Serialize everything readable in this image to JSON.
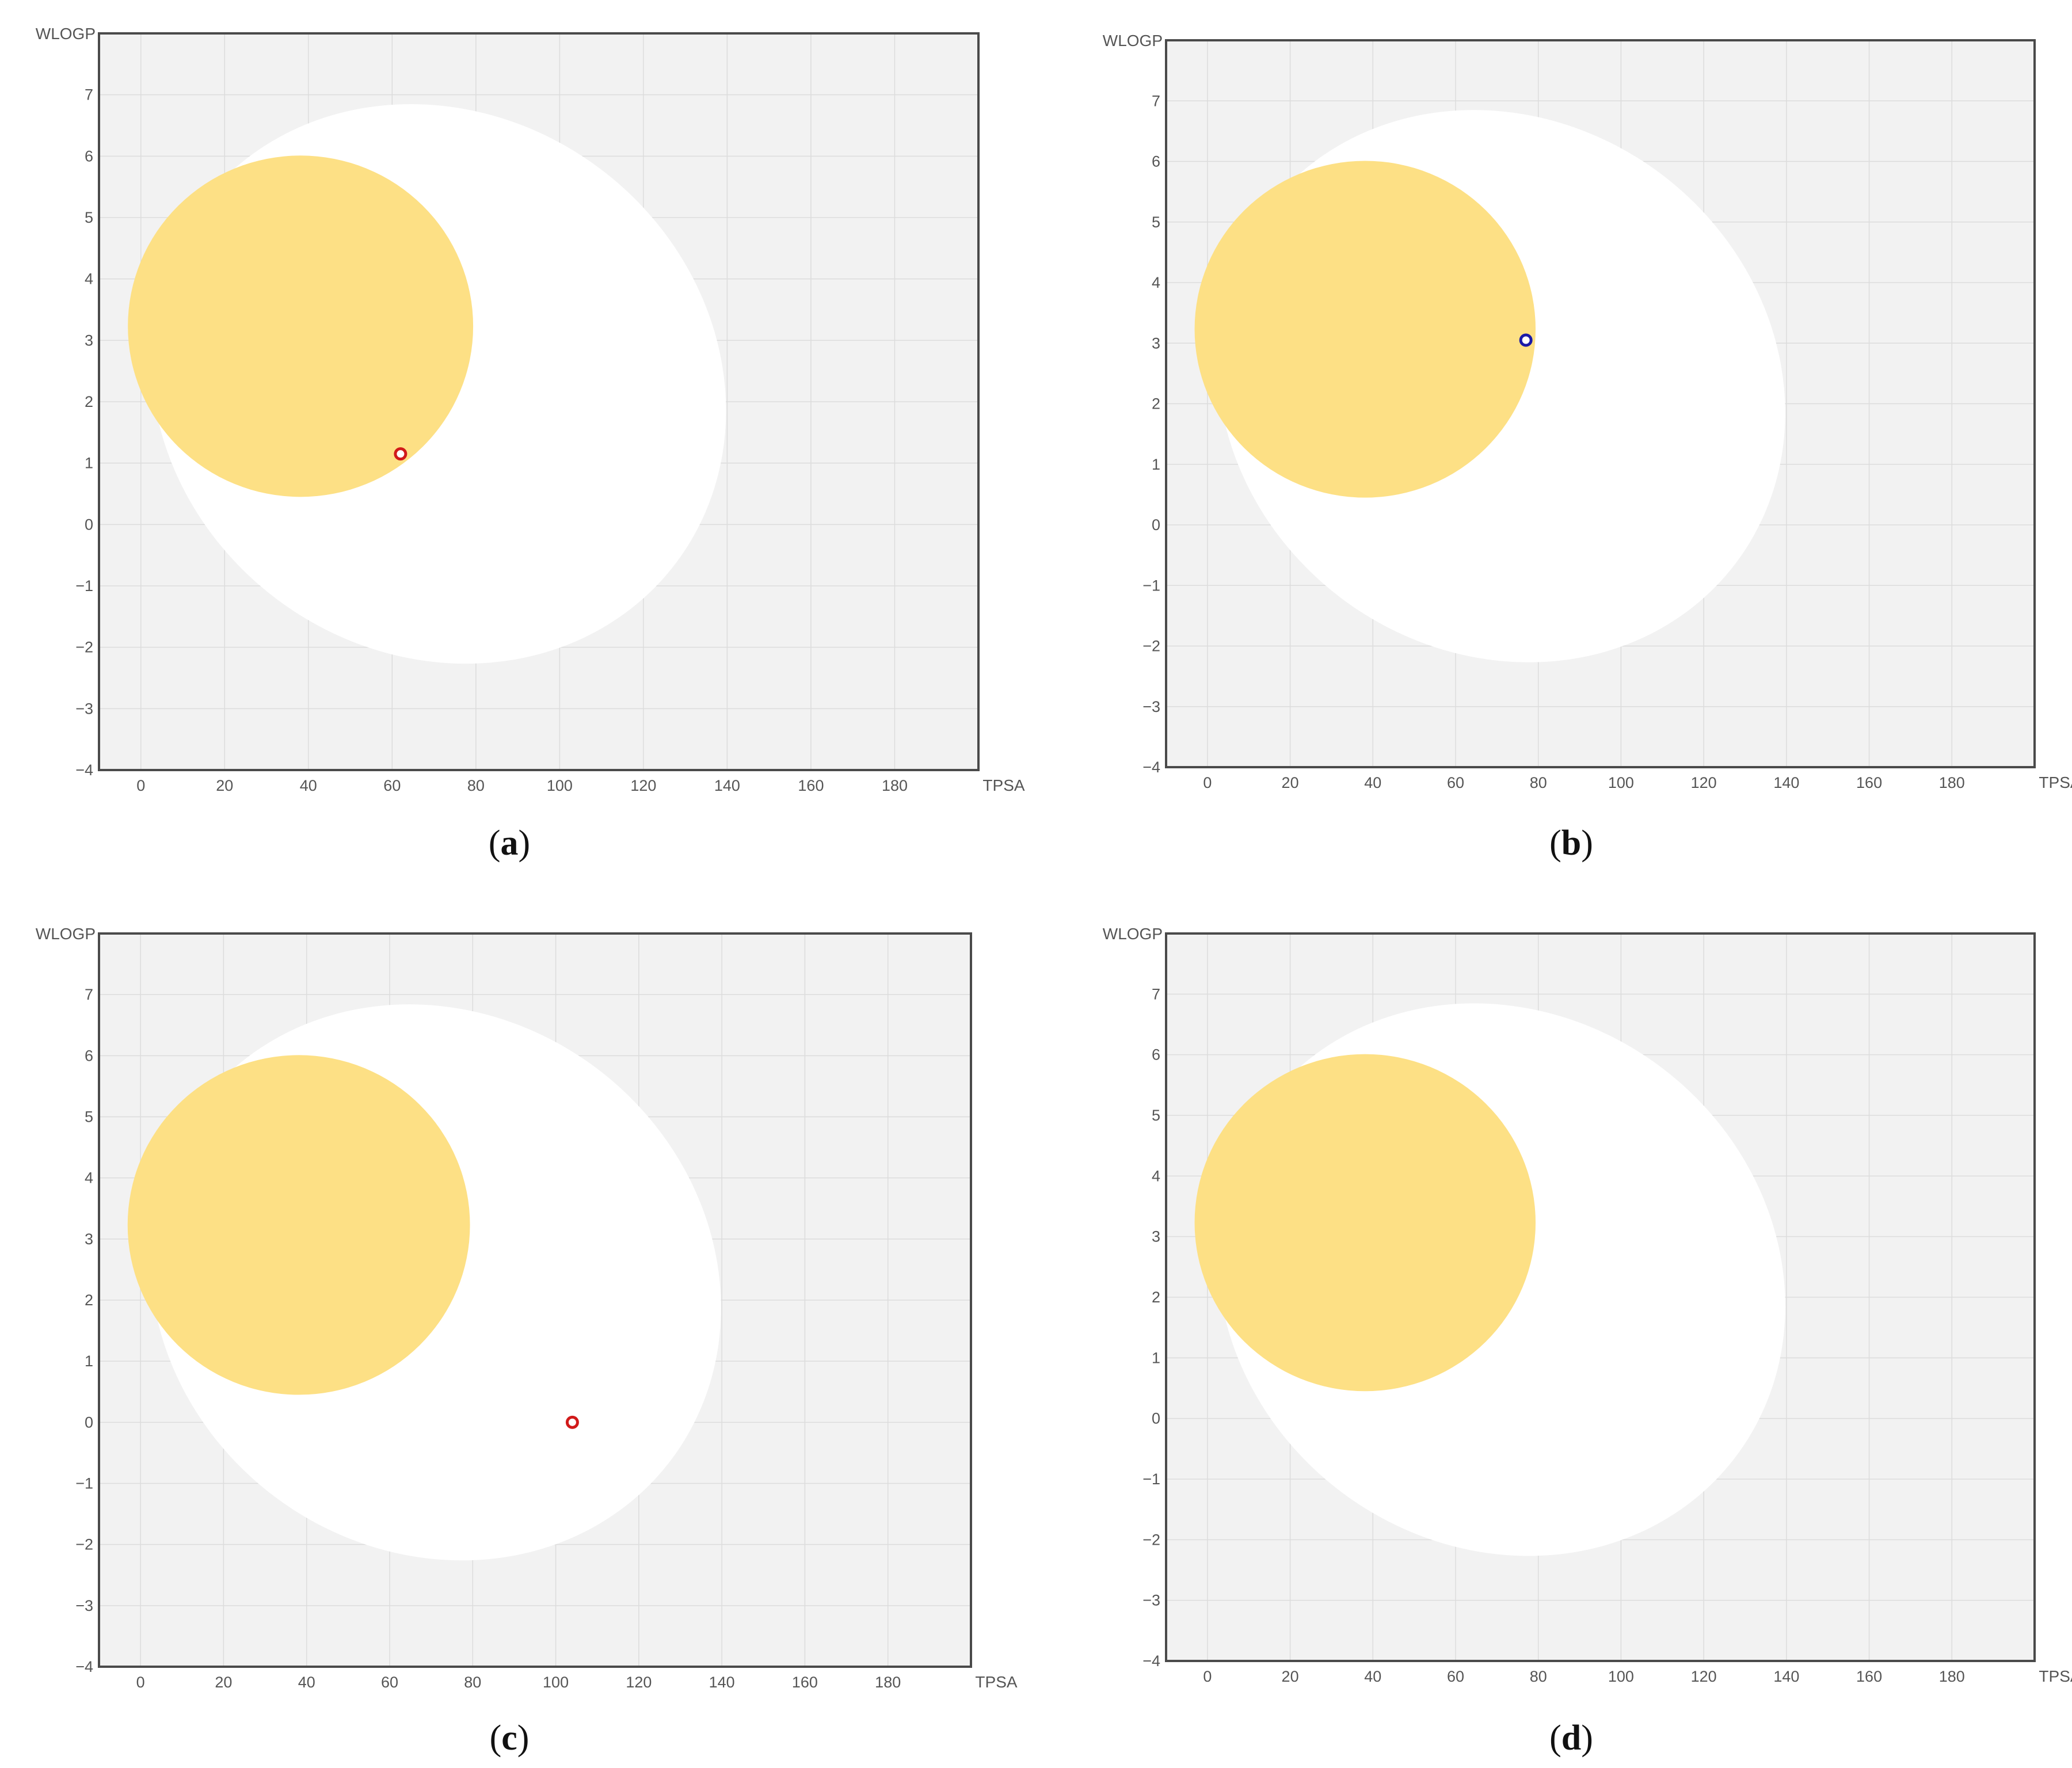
{
  "colors": {
    "plot_background": "#f2f2f2",
    "white_region": "#ffffff",
    "yolk_region": "#fde085",
    "point_red": "#d11a1a",
    "point_blue": "#1a1aa8",
    "frame": "#4a4a4a"
  },
  "chart_data": [
    {
      "type": "scatter",
      "panel": "a",
      "caption": "a",
      "xlabel": "TPSA",
      "ylabel": "WLOGP",
      "xlim": [
        -10,
        200
      ],
      "ylim": [
        -4,
        8
      ],
      "xticks": [
        0,
        20,
        40,
        60,
        80,
        100,
        120,
        140,
        160,
        180
      ],
      "yticks": [
        -4,
        -3,
        -2,
        -1,
        0,
        1,
        2,
        3,
        4,
        5,
        6,
        7
      ],
      "regions": [
        {
          "kind": "white",
          "cx": 71.05,
          "cy": 2.29,
          "rx": 142.08,
          "ry": 8.77,
          "angle": -0.065
        },
        {
          "kind": "yolk",
          "cx": 38.12,
          "cy": 3.23,
          "rx": 82.45,
          "ry": 5.56,
          "angle": 0.0
        }
      ],
      "points": [
        {
          "x": 62,
          "y": 1.15,
          "color": "red"
        }
      ]
    },
    {
      "type": "scatter",
      "panel": "b",
      "caption": "b",
      "xlabel": "TPSA",
      "ylabel": "WLOGP",
      "xlim": [
        -10,
        200
      ],
      "ylim": [
        -4,
        8
      ],
      "xticks": [
        0,
        20,
        40,
        60,
        80,
        100,
        120,
        140,
        160,
        180
      ],
      "yticks": [
        -4,
        -3,
        -2,
        -1,
        0,
        1,
        2,
        3,
        4,
        5,
        6,
        7
      ],
      "regions": [
        {
          "kind": "white",
          "cx": 71.05,
          "cy": 2.29,
          "rx": 142.08,
          "ry": 8.77,
          "angle": -0.065
        },
        {
          "kind": "yolk",
          "cx": 38.12,
          "cy": 3.23,
          "rx": 82.45,
          "ry": 5.56,
          "angle": 0.0
        }
      ],
      "points": [
        {
          "x": 77,
          "y": 3.05,
          "color": "blue"
        }
      ]
    },
    {
      "type": "scatter",
      "panel": "c",
      "caption": "c",
      "xlabel": "TPSA",
      "ylabel": "WLOGP",
      "xlim": [
        -10,
        200
      ],
      "ylim": [
        -4,
        8
      ],
      "xticks": [
        0,
        20,
        40,
        60,
        80,
        100,
        120,
        140,
        160,
        180
      ],
      "yticks": [
        -4,
        -3,
        -2,
        -1,
        0,
        1,
        2,
        3,
        4,
        5,
        6,
        7
      ],
      "regions": [
        {
          "kind": "white",
          "cx": 71.05,
          "cy": 2.29,
          "rx": 142.08,
          "ry": 8.77,
          "angle": -0.065
        },
        {
          "kind": "yolk",
          "cx": 38.12,
          "cy": 3.23,
          "rx": 82.45,
          "ry": 5.56,
          "angle": 0.0
        }
      ],
      "points": [
        {
          "x": 104,
          "y": 0.0,
          "color": "red"
        }
      ]
    },
    {
      "type": "scatter",
      "panel": "d",
      "caption": "d",
      "xlabel": "TPSA",
      "ylabel": "WLOGP",
      "xlim": [
        -10,
        200
      ],
      "ylim": [
        -4,
        8
      ],
      "xticks": [
        0,
        20,
        40,
        60,
        80,
        100,
        120,
        140,
        160,
        180
      ],
      "yticks": [
        -4,
        -3,
        -2,
        -1,
        0,
        1,
        2,
        3,
        4,
        5,
        6,
        7
      ],
      "regions": [
        {
          "kind": "white",
          "cx": 71.05,
          "cy": 2.29,
          "rx": 142.08,
          "ry": 8.77,
          "angle": -0.065
        },
        {
          "kind": "yolk",
          "cx": 38.12,
          "cy": 3.23,
          "rx": 82.45,
          "ry": 5.56,
          "angle": 0.0
        }
      ],
      "points": []
    }
  ]
}
